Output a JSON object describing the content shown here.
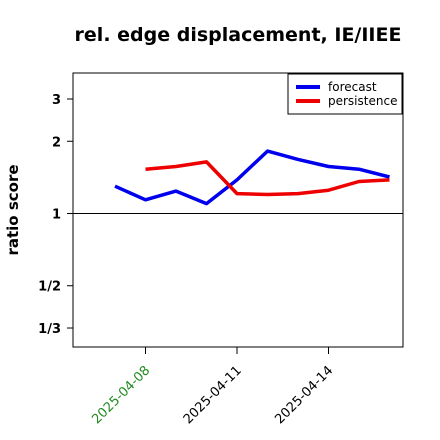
{
  "chart_data": {
    "type": "line",
    "title": "rel. edge displacement, IE/IIEE",
    "ylabel": "ratio score",
    "xlabel": "",
    "y_scale": "log",
    "ylim": [
      0.2778,
      3.85
    ],
    "y_ticks": [
      {
        "value": 3,
        "label": "3"
      },
      {
        "value": 2,
        "label": "2"
      },
      {
        "value": 1,
        "label": "1"
      },
      {
        "value": 0.5,
        "label": "1/2"
      },
      {
        "value": 0.3333,
        "label": "1/3"
      }
    ],
    "reference_line": 1,
    "x": [
      "2025-04-07",
      "2025-04-08",
      "2025-04-09",
      "2025-04-10",
      "2025-04-11",
      "2025-04-12",
      "2025-04-13",
      "2025-04-14",
      "2025-04-15",
      "2025-04-16"
    ],
    "x_ticks": [
      {
        "value": "2025-04-08",
        "label": "2025-04-08",
        "color": "#228B22"
      },
      {
        "value": "2025-04-11",
        "label": "2025-04-11",
        "color": "#000000"
      },
      {
        "value": "2025-04-14",
        "label": "2025-04-14",
        "color": "#000000"
      }
    ],
    "series": [
      {
        "name": "forecast",
        "color": "#0000ee",
        "values": [
          1.3,
          1.14,
          1.24,
          1.1,
          1.38,
          1.82,
          1.68,
          1.57,
          1.53,
          1.42
        ]
      },
      {
        "name": "persistence",
        "color": "#ee0000",
        "values": [
          null,
          1.53,
          1.57,
          1.64,
          1.21,
          1.2,
          1.21,
          1.25,
          1.36,
          1.38
        ]
      }
    ],
    "legend_position": "top-right",
    "grid": false
  }
}
